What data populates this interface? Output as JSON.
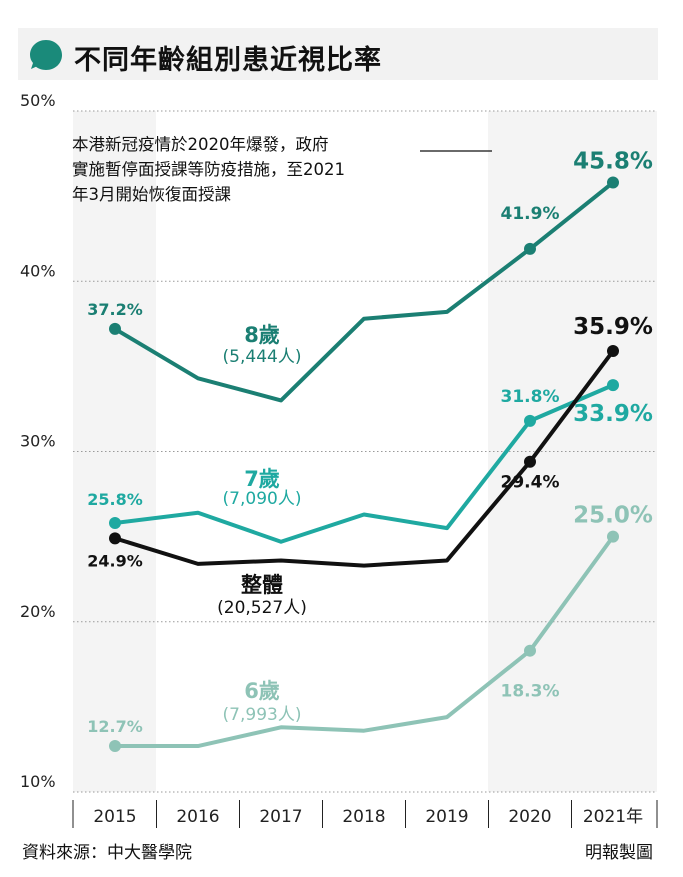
{
  "header": {
    "title": "不同年齡組別患近視比率",
    "icon": "speech-bubble-icon",
    "icon_color": "#1a8a7a"
  },
  "note": {
    "line1": "本港新冠疫情於2020年爆發，政府",
    "line2": "實施暫停面授課等防疫措施，至2021",
    "line3": "年3月開始恢復面授課"
  },
  "footer": {
    "source": "資料來源：中大醫學院",
    "credit": "明報製圖"
  },
  "chart_data": {
    "type": "line",
    "categories": [
      "2015",
      "2016",
      "2017",
      "2018",
      "2019",
      "2020",
      "2021年"
    ],
    "ylim": [
      10,
      50
    ],
    "yticks": [
      "10%",
      "20%",
      "30%",
      "40%",
      "50%"
    ],
    "grid": true,
    "highlight_from": "2020",
    "series": [
      {
        "name": "8歲",
        "sub": "(5,444人)",
        "color": "#1b7f73",
        "values": [
          37.2,
          34.3,
          33.0,
          37.8,
          38.2,
          41.9,
          45.8
        ],
        "labels": [
          "37.2%",
          "",
          "",
          "",
          "",
          "41.9%",
          "45.8%"
        ]
      },
      {
        "name": "7歲",
        "sub": "(7,090人)",
        "color": "#1fa9a1",
        "values": [
          25.8,
          26.4,
          24.7,
          26.3,
          25.5,
          31.8,
          33.9
        ],
        "labels": [
          "25.8%",
          "",
          "",
          "",
          "",
          "31.8%",
          "33.9%"
        ]
      },
      {
        "name": "整體",
        "sub": "(20,527人)",
        "color": "#111111",
        "values": [
          24.9,
          23.4,
          23.6,
          23.3,
          23.6,
          29.4,
          35.9
        ],
        "labels": [
          "24.9%",
          "",
          "",
          "",
          "",
          "29.4%",
          "35.9%"
        ]
      },
      {
        "name": "6歲",
        "sub": "(7,993人)",
        "color": "#8ec3b6",
        "values": [
          12.7,
          12.7,
          13.8,
          13.6,
          14.4,
          18.3,
          25.0
        ],
        "labels": [
          "12.7%",
          "",
          "",
          "",
          "",
          "18.3%",
          "25.0%"
        ]
      }
    ]
  }
}
